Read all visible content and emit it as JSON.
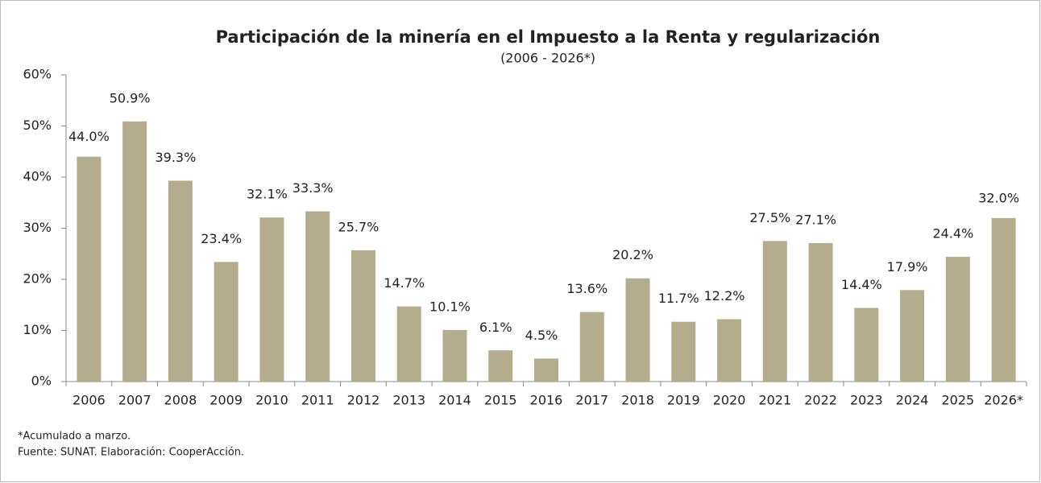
{
  "chart_data": {
    "type": "bar",
    "title": "Participación de la minería en el Impuesto a la Renta y regularización",
    "subtitle": "(2006 - 2026*)",
    "categories": [
      "2006",
      "2007",
      "2008",
      "2009",
      "2010",
      "2011",
      "2012",
      "2013",
      "2014",
      "2015",
      "2016",
      "2017",
      "2018",
      "2019",
      "2020",
      "2021",
      "2022",
      "2023",
      "2024",
      "2025",
      "2026*"
    ],
    "values": [
      44.0,
      50.9,
      39.3,
      23.4,
      32.1,
      33.3,
      25.7,
      14.7,
      10.1,
      6.1,
      4.5,
      13.6,
      20.2,
      11.7,
      12.2,
      27.5,
      27.1,
      14.4,
      17.9,
      24.4,
      32.0
    ],
    "value_labels": [
      "44.0%",
      "50.9%",
      "39.3%",
      "23.4%",
      "32.1%",
      "33.3%",
      "25.7%",
      "14.7%",
      "10.1%",
      "6.1%",
      "4.5%",
      "13.6%",
      "20.2%",
      "11.7%",
      "12.2%",
      "27.5%",
      "27.1%",
      "14.4%",
      "17.9%",
      "24.4%",
      "32.0%"
    ],
    "color": "#b3ad8e",
    "ylim": [
      0,
      60
    ],
    "yticks": [
      {
        "value": 0,
        "label": "0%"
      },
      {
        "value": 10,
        "label": "10%"
      },
      {
        "value": 20,
        "label": "20%"
      },
      {
        "value": 30,
        "label": "30%"
      },
      {
        "value": 40,
        "label": "40%"
      },
      {
        "value": 50,
        "label": "50%"
      },
      {
        "value": 60,
        "label": "60%"
      }
    ],
    "notes": [
      "*Acumulado a marzo.",
      "Fuente: SUNAT. Elaboración: CooperAcción."
    ]
  }
}
